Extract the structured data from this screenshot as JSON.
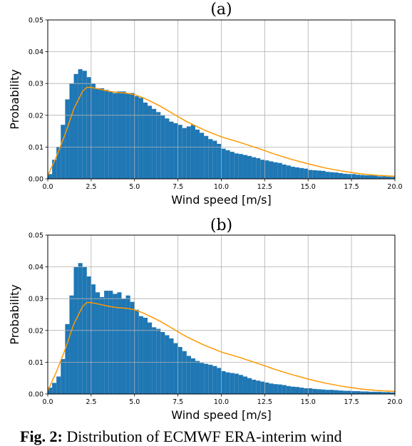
{
  "caption": {
    "prefix": "Fig. 2:",
    "text": "Distribution of ECMWF ERA-interim wind"
  },
  "chart_data": [
    {
      "type": "bar",
      "title": "(a)",
      "xlabel": "Wind speed [m/s]",
      "ylabel": "Probability",
      "xlim": [
        0,
        20
      ],
      "ylim": [
        0,
        0.05
      ],
      "grid": true,
      "xticks": [
        "0.0",
        "2.5",
        "5.0",
        "7.5",
        "10.0",
        "12.5",
        "15.0",
        "17.5",
        "20.0"
      ],
      "yticks": [
        "0.00",
        "0.01",
        "0.02",
        "0.03",
        "0.04",
        "0.05"
      ],
      "bin_width": 0.25,
      "bar_color": "#1f77b4",
      "line_color": "#ff9800",
      "histogram": [
        0.0015,
        0.006,
        0.01,
        0.017,
        0.025,
        0.03,
        0.033,
        0.0345,
        0.034,
        0.032,
        0.03,
        0.0285,
        0.0285,
        0.028,
        0.0275,
        0.027,
        0.0275,
        0.0275,
        0.027,
        0.027,
        0.026,
        0.0255,
        0.024,
        0.023,
        0.022,
        0.021,
        0.02,
        0.019,
        0.018,
        0.0175,
        0.017,
        0.016,
        0.0165,
        0.017,
        0.0155,
        0.0145,
        0.0135,
        0.0125,
        0.012,
        0.011,
        0.0095,
        0.009,
        0.0085,
        0.008,
        0.0078,
        0.0075,
        0.0072,
        0.0068,
        0.0065,
        0.006,
        0.0058,
        0.0055,
        0.0052,
        0.005,
        0.0045,
        0.0042,
        0.0038,
        0.0036,
        0.0034,
        0.0032,
        0.0028,
        0.0027,
        0.0026,
        0.0025,
        0.0022,
        0.0021,
        0.002,
        0.0018,
        0.0016,
        0.0015,
        0.0015,
        0.0013,
        0.0012,
        0.0011,
        0.0011,
        0.001,
        0.0008,
        0.0008,
        0.0007,
        0.0006
      ],
      "curve": {
        "x": [
          0,
          0.5,
          1,
          1.5,
          2,
          2.25,
          2.5,
          3,
          3.5,
          4,
          4.5,
          5,
          5.5,
          6,
          6.5,
          7,
          7.5,
          8,
          9,
          10,
          11,
          12,
          12.5,
          13,
          14,
          15,
          16,
          17,
          18,
          19,
          20
        ],
        "y": [
          0.001,
          0.007,
          0.014,
          0.022,
          0.0275,
          0.0288,
          0.0288,
          0.0282,
          0.0276,
          0.0272,
          0.027,
          0.0265,
          0.0255,
          0.0242,
          0.0228,
          0.0212,
          0.0196,
          0.018,
          0.0154,
          0.0132,
          0.0116,
          0.0098,
          0.0089,
          0.0079,
          0.0062,
          0.0047,
          0.0034,
          0.0024,
          0.0016,
          0.0011,
          0.0008
        ]
      }
    },
    {
      "type": "bar",
      "title": "(b)",
      "xlabel": "Wind speed [m/s]",
      "ylabel": "Probability",
      "xlim": [
        0,
        20
      ],
      "ylim": [
        0,
        0.05
      ],
      "grid": true,
      "xticks": [
        "0.0",
        "2.5",
        "5.0",
        "7.5",
        "10.0",
        "12.5",
        "15.0",
        "17.5",
        "20.0"
      ],
      "yticks": [
        "0.00",
        "0.01",
        "0.02",
        "0.03",
        "0.04",
        "0.05"
      ],
      "bin_width": 0.25,
      "bar_color": "#1f77b4",
      "line_color": "#ff9800",
      "histogram": [
        0.002,
        0.0035,
        0.0055,
        0.011,
        0.022,
        0.031,
        0.04,
        0.0412,
        0.04,
        0.037,
        0.0345,
        0.032,
        0.0305,
        0.0325,
        0.0325,
        0.0315,
        0.032,
        0.03,
        0.031,
        0.029,
        0.0265,
        0.0245,
        0.024,
        0.0225,
        0.021,
        0.0205,
        0.0195,
        0.0185,
        0.0175,
        0.016,
        0.0148,
        0.0135,
        0.012,
        0.0112,
        0.0104,
        0.0098,
        0.0095,
        0.0092,
        0.0088,
        0.0082,
        0.0072,
        0.0068,
        0.0066,
        0.0064,
        0.006,
        0.0055,
        0.005,
        0.0045,
        0.0042,
        0.0039,
        0.0036,
        0.0033,
        0.0031,
        0.003,
        0.0028,
        0.0025,
        0.0023,
        0.0022,
        0.002,
        0.0018,
        0.0018,
        0.0016,
        0.0015,
        0.0014,
        0.0013,
        0.0013,
        0.0012,
        0.0011,
        0.001,
        0.001,
        0.0009,
        0.0009,
        0.0008,
        0.0008,
        0.0007,
        0.0007,
        0.0007,
        0.0006,
        0.0006,
        0.0005
      ],
      "curve": {
        "x": [
          0,
          0.5,
          1,
          1.5,
          2,
          2.25,
          2.5,
          3,
          3.5,
          4,
          4.5,
          5,
          5.5,
          6,
          6.5,
          7,
          7.5,
          8,
          9,
          10,
          11,
          12,
          12.5,
          13,
          14,
          15,
          16,
          17,
          18,
          19,
          20
        ],
        "y": [
          0.001,
          0.007,
          0.014,
          0.022,
          0.0275,
          0.0288,
          0.0288,
          0.0282,
          0.0276,
          0.0272,
          0.027,
          0.0265,
          0.0255,
          0.0242,
          0.0228,
          0.0212,
          0.0196,
          0.018,
          0.0154,
          0.0132,
          0.0116,
          0.0098,
          0.0089,
          0.0079,
          0.0062,
          0.0047,
          0.0034,
          0.0024,
          0.0016,
          0.0011,
          0.0008
        ]
      }
    }
  ]
}
